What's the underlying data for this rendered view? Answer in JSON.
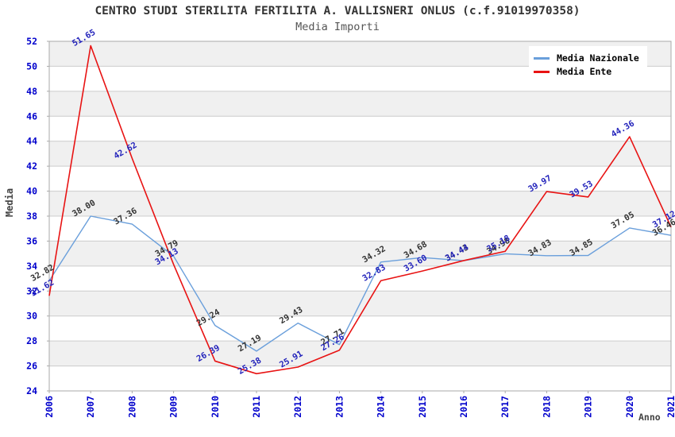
{
  "chart_data": {
    "type": "line",
    "title": "CENTRO STUDI STERILITA FERTILITA A. VALLISNERI ONLUS (c.f.91019970358)",
    "subtitle": "Media Importi",
    "xlabel": "Anno",
    "ylabel": "Media",
    "x": [
      2006,
      2007,
      2008,
      2009,
      2010,
      2011,
      2012,
      2013,
      2014,
      2015,
      2016,
      2017,
      2018,
      2019,
      2020,
      2021
    ],
    "ylim": [
      24,
      52
    ],
    "ytick_step": 2,
    "grid": "horizontal gridlines with alternating gray/white bands",
    "legend_position": "top-right",
    "series": [
      {
        "name": "Media Nazionale",
        "color": "#6a9fdb",
        "label_color": "#333333",
        "values": [
          32.82,
          38.0,
          37.36,
          34.79,
          29.24,
          27.19,
          29.43,
          27.71,
          34.32,
          34.68,
          34.43,
          34.98,
          34.83,
          34.85,
          37.05,
          36.46
        ]
      },
      {
        "name": "Media Ente",
        "color": "#e81313",
        "label_color": "#2222bb",
        "values": [
          31.62,
          51.65,
          42.62,
          34.13,
          26.39,
          25.38,
          25.91,
          27.26,
          32.83,
          33.6,
          34.44,
          35.18,
          39.97,
          39.53,
          44.36,
          37.12
        ]
      }
    ],
    "colors": {
      "axis_tick_text": "#0000cc",
      "band_gray": "#f0f0f0",
      "band_white": "#ffffff",
      "gridline": "#cccccc",
      "plot_border": "#aaaaaa",
      "title_text": "#333333"
    }
  }
}
